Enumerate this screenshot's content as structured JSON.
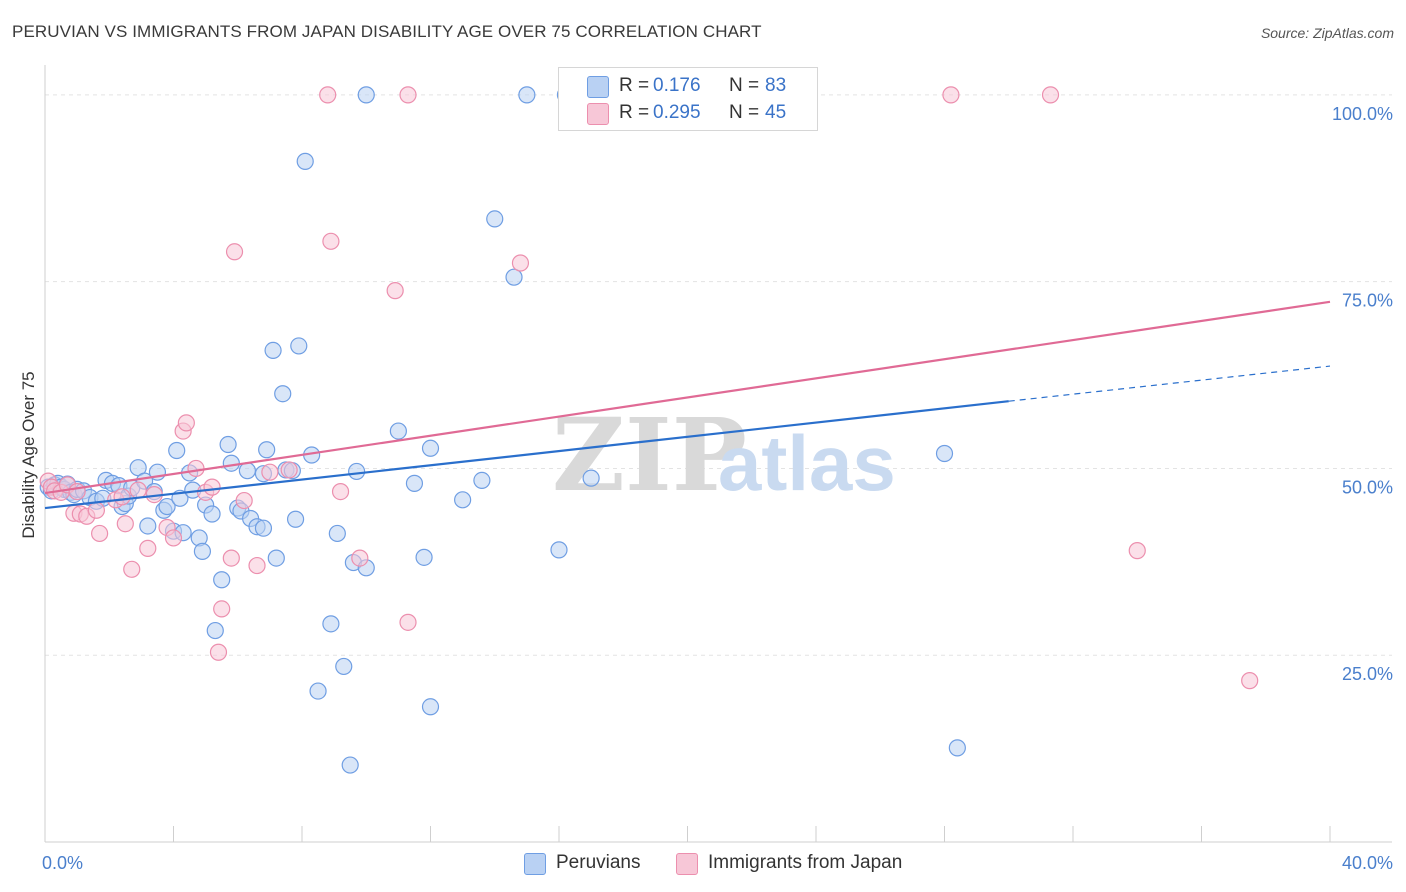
{
  "header": {
    "title": "PERUVIAN VS IMMIGRANTS FROM JAPAN DISABILITY AGE OVER 75 CORRELATION CHART",
    "source": "Source: ZipAtlas.com"
  },
  "legend": {
    "rows": [
      {
        "r_label": "R =",
        "r_value": "0.176",
        "n_label": "N =",
        "n_value": "83"
      },
      {
        "r_label": "R =",
        "r_value": "0.295",
        "n_label": "N =",
        "n_value": "45"
      }
    ]
  },
  "watermark": {
    "zip": "ZIP",
    "atlas": "atlas"
  },
  "chart_data": {
    "type": "scatter",
    "title": "PERUVIAN VS IMMIGRANTS FROM JAPAN DISABILITY AGE OVER 75 CORRELATION CHART",
    "xlabel": "",
    "ylabel": "Disability Age Over 75",
    "xlim": [
      0,
      40
    ],
    "ylim": [
      0,
      104
    ],
    "x_tick_labels": [
      {
        "value": 0,
        "label": "0.0%"
      },
      {
        "value": 40,
        "label": "40.0%"
      }
    ],
    "y_tick_labels": [
      {
        "value": 25,
        "label": "25.0%"
      },
      {
        "value": 50,
        "label": "50.0%"
      },
      {
        "value": 75,
        "label": "75.0%"
      },
      {
        "value": 100,
        "label": "100.0%"
      }
    ],
    "grid": "horizontal dashed",
    "legend_position": "top-center",
    "series": [
      {
        "name": "Peruvians",
        "color": "#6f9ee3",
        "fill": "#b9d1f3",
        "line_color": "#2a6fcc",
        "trend": {
          "x0": 0,
          "y0": 44.7,
          "x1": 30,
          "y1": 59.0,
          "dashed_to_x": 40,
          "dashed_to_y": 63.7
        },
        "points": [
          [
            0.1,
            47.5
          ],
          [
            0.2,
            47.0
          ],
          [
            0.3,
            47.8
          ],
          [
            0.4,
            48.0
          ],
          [
            0.5,
            47.5
          ],
          [
            0.6,
            47.2
          ],
          [
            0.7,
            47.9
          ],
          [
            0.8,
            46.8
          ],
          [
            0.9,
            46.5
          ],
          [
            1.0,
            47.2
          ],
          [
            1.2,
            47.0
          ],
          [
            1.4,
            46.1
          ],
          [
            1.6,
            45.6
          ],
          [
            1.8,
            46.0
          ],
          [
            1.9,
            48.4
          ],
          [
            2.1,
            48.0
          ],
          [
            2.3,
            47.7
          ],
          [
            2.4,
            44.9
          ],
          [
            2.5,
            45.3
          ],
          [
            2.6,
            46.3
          ],
          [
            2.7,
            47.4
          ],
          [
            2.9,
            50.1
          ],
          [
            3.1,
            48.3
          ],
          [
            3.2,
            42.3
          ],
          [
            3.4,
            46.9
          ],
          [
            3.5,
            49.5
          ],
          [
            3.7,
            44.4
          ],
          [
            3.8,
            44.9
          ],
          [
            4.0,
            41.6
          ],
          [
            4.1,
            52.4
          ],
          [
            4.2,
            46.0
          ],
          [
            4.3,
            41.4
          ],
          [
            4.5,
            49.4
          ],
          [
            4.6,
            47.1
          ],
          [
            4.8,
            40.7
          ],
          [
            4.9,
            38.9
          ],
          [
            5.0,
            45.1
          ],
          [
            5.2,
            43.9
          ],
          [
            5.5,
            35.1
          ],
          [
            5.7,
            53.2
          ],
          [
            5.8,
            50.7
          ],
          [
            6.0,
            44.7
          ],
          [
            6.1,
            44.3
          ],
          [
            6.3,
            49.7
          ],
          [
            6.4,
            43.3
          ],
          [
            6.6,
            42.2
          ],
          [
            6.8,
            49.3
          ],
          [
            6.9,
            52.5
          ],
          [
            7.1,
            65.8
          ],
          [
            7.2,
            38.0
          ],
          [
            7.4,
            60.0
          ],
          [
            7.5,
            49.8
          ],
          [
            7.7,
            49.7
          ],
          [
            7.8,
            43.2
          ],
          [
            7.9,
            66.4
          ],
          [
            8.1,
            91.1
          ],
          [
            8.3,
            51.8
          ],
          [
            8.5,
            20.2
          ],
          [
            8.9,
            29.2
          ],
          [
            9.1,
            41.3
          ],
          [
            9.3,
            23.5
          ],
          [
            9.6,
            37.4
          ],
          [
            9.7,
            49.6
          ],
          [
            10.0,
            36.7
          ],
          [
            11.0,
            55.0
          ],
          [
            11.5,
            48.0
          ],
          [
            11.8,
            38.1
          ],
          [
            12.0,
            52.7
          ],
          [
            13.0,
            45.8
          ],
          [
            13.6,
            48.4
          ],
          [
            14.0,
            83.4
          ],
          [
            14.6,
            75.6
          ],
          [
            15.0,
            100.0
          ],
          [
            16.0,
            39.1
          ],
          [
            16.2,
            100.0
          ],
          [
            17.0,
            48.7
          ],
          [
            28.0,
            52.0
          ],
          [
            9.5,
            10.3
          ],
          [
            10.0,
            100.0
          ],
          [
            12.0,
            18.1
          ],
          [
            28.4,
            12.6
          ],
          [
            5.3,
            28.3
          ],
          [
            6.8,
            42.0
          ]
        ]
      },
      {
        "name": "Immigrants from Japan",
        "color": "#ec8fae",
        "fill": "#f7c7d7",
        "line_color": "#e06a95",
        "trend": {
          "x0": 0,
          "y0": 46.7,
          "x1": 40,
          "y1": 72.3
        },
        "points": [
          [
            0.1,
            48.3
          ],
          [
            0.2,
            47.5
          ],
          [
            0.3,
            47.0
          ],
          [
            0.5,
            46.8
          ],
          [
            0.7,
            47.8
          ],
          [
            0.9,
            44.0
          ],
          [
            1.1,
            43.9
          ],
          [
            1.3,
            43.6
          ],
          [
            1.6,
            44.4
          ],
          [
            1.7,
            41.3
          ],
          [
            2.2,
            45.8
          ],
          [
            2.5,
            42.6
          ],
          [
            2.7,
            36.5
          ],
          [
            2.9,
            47.1
          ],
          [
            3.2,
            39.3
          ],
          [
            3.4,
            46.5
          ],
          [
            3.8,
            42.1
          ],
          [
            4.0,
            40.7
          ],
          [
            4.3,
            55.0
          ],
          [
            4.4,
            56.1
          ],
          [
            4.7,
            50.0
          ],
          [
            5.0,
            46.8
          ],
          [
            5.5,
            31.2
          ],
          [
            5.4,
            25.4
          ],
          [
            5.8,
            38.0
          ],
          [
            5.9,
            79.0
          ],
          [
            6.2,
            45.7
          ],
          [
            6.6,
            37.0
          ],
          [
            7.0,
            49.5
          ],
          [
            7.6,
            49.8
          ],
          [
            8.9,
            80.4
          ],
          [
            9.2,
            46.9
          ],
          [
            9.8,
            38.0
          ],
          [
            10.9,
            73.8
          ],
          [
            11.3,
            29.4
          ],
          [
            14.8,
            77.5
          ],
          [
            8.8,
            100.0
          ],
          [
            11.3,
            100.0
          ],
          [
            28.2,
            100.0
          ],
          [
            31.3,
            100.0
          ],
          [
            34.0,
            39.0
          ],
          [
            37.5,
            21.6
          ],
          [
            5.2,
            47.5
          ],
          [
            2.4,
            46.2
          ],
          [
            1.0,
            46.9
          ]
        ]
      }
    ]
  },
  "bottom_legend": [
    {
      "label": "Peruvians",
      "fill": "#b9d1f3",
      "stroke": "#6f9ee3"
    },
    {
      "label": "Immigrants from Japan",
      "fill": "#f7c7d7",
      "stroke": "#ec8fae"
    }
  ]
}
